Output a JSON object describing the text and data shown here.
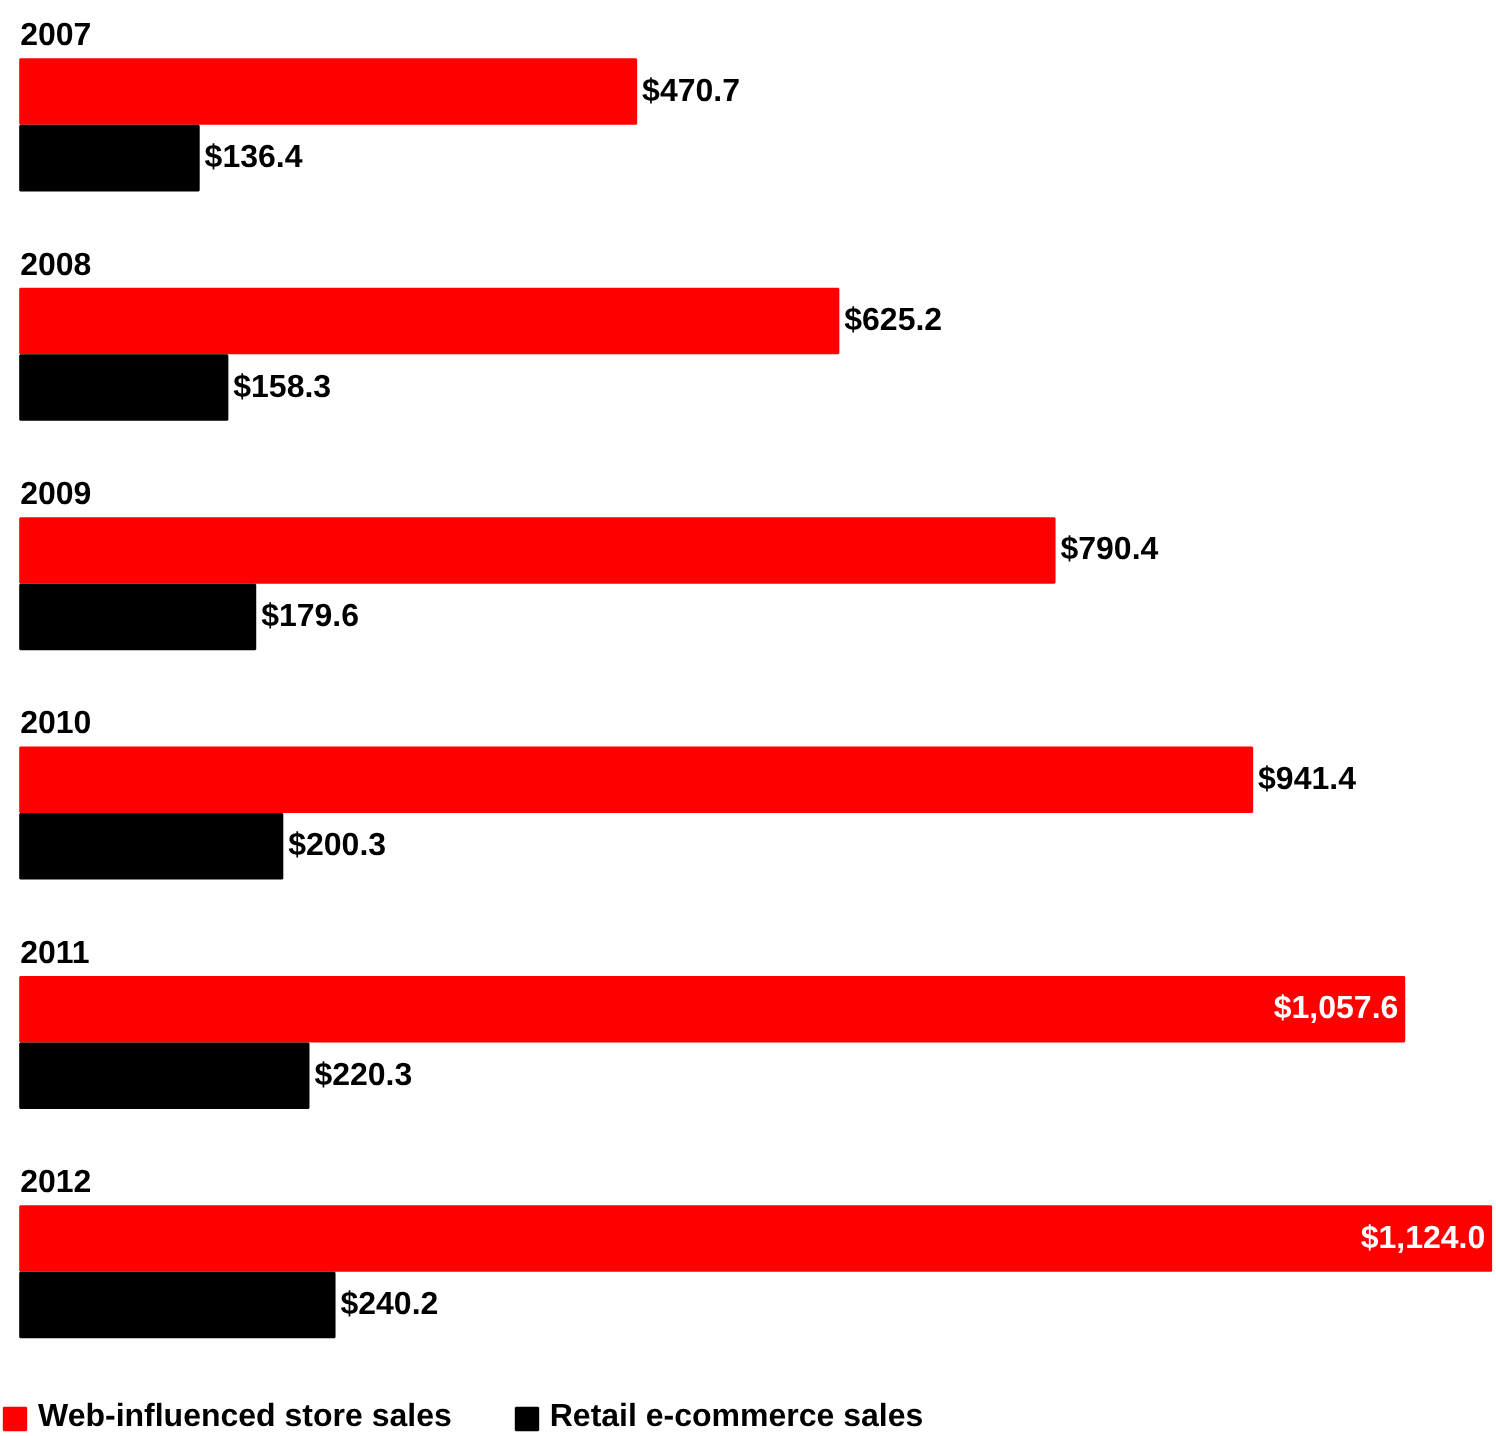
{
  "chart_data": {
    "type": "bar",
    "orientation": "horizontal",
    "categories": [
      "2007",
      "2008",
      "2009",
      "2010",
      "2011",
      "2012"
    ],
    "series": [
      {
        "name": "Web-influenced store sales",
        "color": "#ff0000",
        "values": [
          470.7,
          625.2,
          790.4,
          941.4,
          1057.6,
          1124.0
        ],
        "value_labels": [
          "$470.7",
          "$625.2",
          "$790.4",
          "$941.4",
          "$1,057.6",
          "$1,124.0"
        ]
      },
      {
        "name": "Retail e-commerce sales",
        "color": "#000000",
        "values": [
          136.4,
          158.3,
          179.6,
          200.3,
          220.3,
          240.2
        ],
        "value_labels": [
          "$136.4",
          "$158.3",
          "$179.6",
          "$200.3",
          "$220.3",
          "$240.2"
        ]
      }
    ],
    "legend": "bottom",
    "grid": false
  }
}
